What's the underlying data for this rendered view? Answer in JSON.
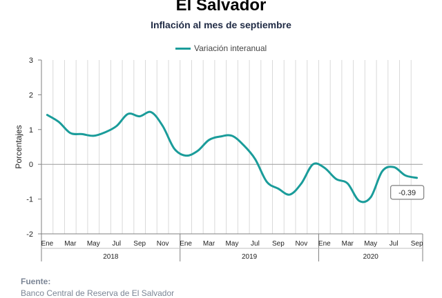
{
  "chart_data": {
    "type": "line",
    "title": "El Salvador",
    "subtitle": "Inflación al mes de septiembre",
    "ylabel": "Porcentajes",
    "ylim": [
      -2,
      3
    ],
    "yticks": [
      3,
      2,
      1,
      0,
      -1,
      -2
    ],
    "grid": "vertical",
    "legend_position": "top-center",
    "line_color": "#1a9c9a",
    "month_labels": [
      "Ene",
      "Mar",
      "May",
      "Jul",
      "Sep",
      "Nov",
      "Ene",
      "Mar",
      "May",
      "Jul",
      "Sep",
      "Nov",
      "Ene",
      "Mar",
      "May",
      "Jul",
      "Sep"
    ],
    "year_labels": [
      "2018",
      "2019",
      "2020"
    ],
    "x": [
      "2018-01",
      "2018-02",
      "2018-03",
      "2018-04",
      "2018-05",
      "2018-06",
      "2018-07",
      "2018-08",
      "2018-09",
      "2018-10",
      "2018-11",
      "2018-12",
      "2019-01",
      "2019-02",
      "2019-03",
      "2019-04",
      "2019-05",
      "2019-06",
      "2019-07",
      "2019-08",
      "2019-09",
      "2019-10",
      "2019-11",
      "2019-12",
      "2020-01",
      "2020-02",
      "2020-03",
      "2020-04",
      "2020-05",
      "2020-06",
      "2020-07",
      "2020-08",
      "2020-09"
    ],
    "series": [
      {
        "name": "Variación interanual",
        "values": [
          1.42,
          1.22,
          0.9,
          0.87,
          0.82,
          0.92,
          1.1,
          1.45,
          1.38,
          1.5,
          1.1,
          0.45,
          0.25,
          0.38,
          0.7,
          0.8,
          0.82,
          0.55,
          0.15,
          -0.5,
          -0.7,
          -0.87,
          -0.55,
          0.0,
          -0.1,
          -0.42,
          -0.55,
          -1.05,
          -0.95,
          -0.2,
          -0.08,
          -0.32,
          -0.39
        ]
      }
    ],
    "annotations": [
      {
        "text": "-0.39",
        "x": "2020-09"
      }
    ]
  },
  "source": {
    "title": "Fuente:",
    "text": "Banco Central de Reserva de El Salvador"
  }
}
